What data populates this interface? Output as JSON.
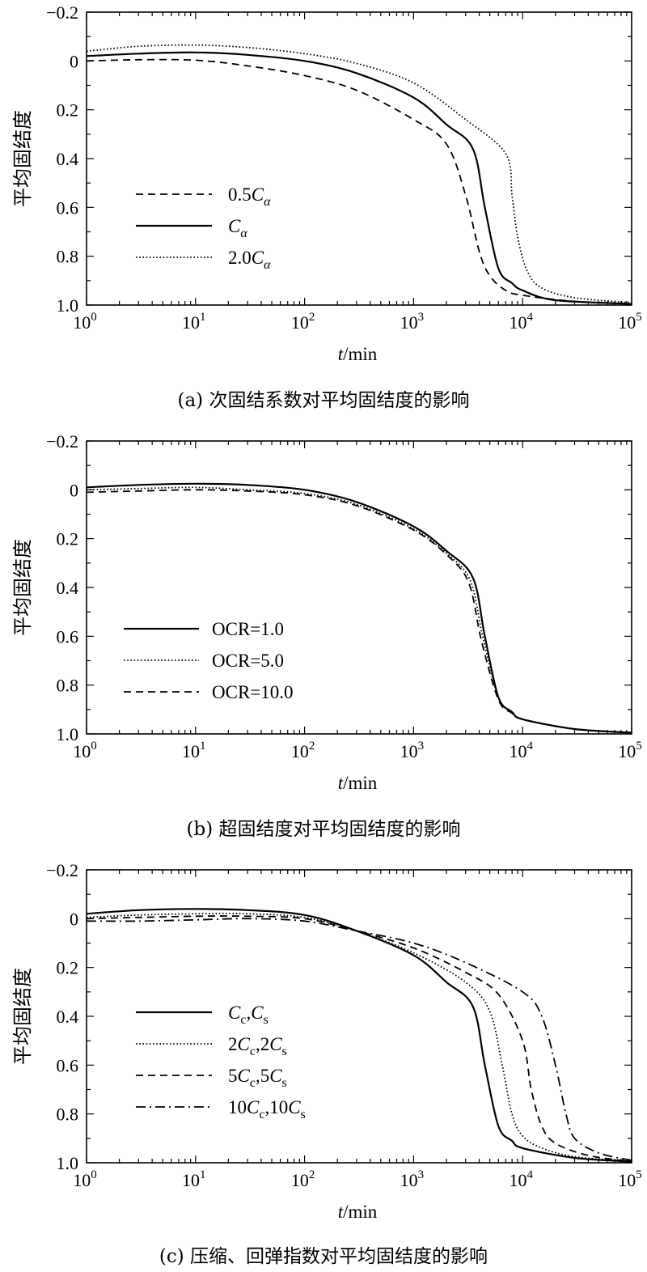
{
  "chart_data": [
    {
      "type": "line",
      "caption": "(a) 次固结系数对平均固结度的影响",
      "ylabel": "平均固结度",
      "xlabel": "t/min",
      "xscale": "log",
      "xlim": [
        1,
        100000
      ],
      "ylim": [
        -0.2,
        1.0
      ],
      "y_inverted": true,
      "legend_placement": "left-middle",
      "x_ticks": [
        {
          "base": "10",
          "exp": "0"
        },
        {
          "base": "10",
          "exp": "1"
        },
        {
          "base": "10",
          "exp": "2"
        },
        {
          "base": "10",
          "exp": "3"
        },
        {
          "base": "10",
          "exp": "4"
        },
        {
          "base": "10",
          "exp": "5"
        }
      ],
      "y_ticks": [
        "−0.2",
        "0",
        "0.2",
        "0.4",
        "0.6",
        "0.8",
        "1.0"
      ],
      "series": [
        {
          "legend_parts": [
            {
              "t": "0.5"
            },
            {
              "t": "C",
              "i": true
            },
            {
              "t": "α",
              "sub": true,
              "i": true
            }
          ],
          "style": "dashed",
          "x": [
            1,
            3,
            10,
            30,
            100,
            300,
            1000,
            2000,
            3000,
            4000,
            5000,
            7000,
            10000,
            30000,
            100000
          ],
          "y": [
            0.0,
            -0.005,
            -0.003,
            0.02,
            0.06,
            0.12,
            0.24,
            0.34,
            0.55,
            0.78,
            0.88,
            0.94,
            0.96,
            0.985,
            0.995
          ]
        },
        {
          "legend_parts": [
            {
              "t": "C",
              "i": true
            },
            {
              "t": "α",
              "sub": true,
              "i": true
            }
          ],
          "style": "solid",
          "x": [
            1,
            3,
            10,
            30,
            100,
            300,
            1000,
            2000,
            3500,
            4500,
            6000,
            8000,
            10000,
            20000,
            100000
          ],
          "y": [
            -0.02,
            -0.03,
            -0.035,
            -0.025,
            0.0,
            0.05,
            0.15,
            0.26,
            0.36,
            0.6,
            0.85,
            0.91,
            0.94,
            0.98,
            0.995
          ]
        },
        {
          "legend_parts": [
            {
              "t": "2.0"
            },
            {
              "t": "C",
              "i": true
            },
            {
              "t": "α",
              "sub": true,
              "i": true
            }
          ],
          "style": "dotted",
          "x": [
            1,
            3,
            10,
            30,
            100,
            300,
            1000,
            3000,
            7000,
            8000,
            9000,
            11000,
            15000,
            30000,
            100000
          ],
          "y": [
            -0.04,
            -0.06,
            -0.065,
            -0.055,
            -0.03,
            0.01,
            0.09,
            0.24,
            0.38,
            0.55,
            0.72,
            0.86,
            0.93,
            0.97,
            0.99
          ]
        }
      ]
    },
    {
      "type": "line",
      "caption": "(b) 超固结度对平均固结度的影响",
      "ylabel": "平均固结度",
      "xlabel": "t/min",
      "xscale": "log",
      "xlim": [
        1,
        100000
      ],
      "ylim": [
        -0.2,
        1.0
      ],
      "y_inverted": true,
      "legend_placement": "left-middle",
      "x_ticks": [
        {
          "base": "10",
          "exp": "0"
        },
        {
          "base": "10",
          "exp": "1"
        },
        {
          "base": "10",
          "exp": "2"
        },
        {
          "base": "10",
          "exp": "3"
        },
        {
          "base": "10",
          "exp": "4"
        },
        {
          "base": "10",
          "exp": "5"
        }
      ],
      "y_ticks": [
        "−0.2",
        "0",
        "0.2",
        "0.4",
        "0.6",
        "0.8",
        "1.0"
      ],
      "series": [
        {
          "legend_parts": [
            {
              "t": "OCR=1.0"
            }
          ],
          "style": "solid",
          "x": [
            1,
            3,
            10,
            30,
            100,
            300,
            1000,
            2000,
            3500,
            4500,
            6000,
            8000,
            10000,
            30000,
            100000
          ],
          "y": [
            -0.01,
            -0.02,
            -0.025,
            -0.02,
            0.0,
            0.05,
            0.15,
            0.25,
            0.36,
            0.6,
            0.85,
            0.91,
            0.94,
            0.98,
            0.995
          ]
        },
        {
          "legend_parts": [
            {
              "t": "OCR=5.0"
            }
          ],
          "style": "dotted",
          "x": [
            1,
            3,
            10,
            30,
            100,
            300,
            1000,
            2000,
            3300,
            4300,
            6000,
            8000,
            10000,
            30000,
            100000
          ],
          "y": [
            0.0,
            -0.005,
            -0.01,
            0.0,
            0.015,
            0.06,
            0.16,
            0.26,
            0.37,
            0.6,
            0.85,
            0.91,
            0.94,
            0.98,
            0.995
          ]
        },
        {
          "legend_parts": [
            {
              "t": "OCR=10.0"
            }
          ],
          "style": "dashed",
          "x": [
            1,
            3,
            10,
            30,
            100,
            300,
            1000,
            2000,
            3200,
            4200,
            6000,
            8000,
            10000,
            30000,
            100000
          ],
          "y": [
            0.01,
            0.005,
            0.0,
            0.005,
            0.02,
            0.065,
            0.165,
            0.265,
            0.38,
            0.62,
            0.86,
            0.915,
            0.94,
            0.98,
            0.995
          ]
        }
      ]
    },
    {
      "type": "line",
      "caption": "(c) 压缩、回弹指数对平均固结度的影响",
      "ylabel": "平均固结度",
      "xlabel": "t/min",
      "xscale": "log",
      "xlim": [
        1,
        100000
      ],
      "ylim": [
        -0.2,
        1.0
      ],
      "y_inverted": true,
      "legend_placement": "left-middle",
      "x_ticks": [
        {
          "base": "10",
          "exp": "0"
        },
        {
          "base": "10",
          "exp": "1"
        },
        {
          "base": "10",
          "exp": "2"
        },
        {
          "base": "10",
          "exp": "3"
        },
        {
          "base": "10",
          "exp": "4"
        },
        {
          "base": "10",
          "exp": "5"
        }
      ],
      "y_ticks": [
        "−0.2",
        "0",
        "0.2",
        "0.4",
        "0.6",
        "0.8",
        "1.0"
      ],
      "series": [
        {
          "legend_parts": [
            {
              "t": "C",
              "i": true
            },
            {
              "t": "c",
              "sub": true
            },
            {
              "t": ","
            },
            {
              "t": "C",
              "i": true
            },
            {
              "t": "s",
              "sub": true
            }
          ],
          "style": "solid",
          "x": [
            1,
            3,
            10,
            30,
            100,
            300,
            1000,
            2000,
            3500,
            4500,
            6000,
            8000,
            10000,
            30000,
            100000
          ],
          "y": [
            -0.02,
            -0.035,
            -0.04,
            -0.035,
            -0.015,
            0.05,
            0.15,
            0.26,
            0.36,
            0.6,
            0.85,
            0.91,
            0.94,
            0.98,
            0.995
          ]
        },
        {
          "legend_parts": [
            {
              "t": "2"
            },
            {
              "t": "C",
              "i": true
            },
            {
              "t": "c",
              "sub": true
            },
            {
              "t": ",2"
            },
            {
              "t": "C",
              "i": true
            },
            {
              "t": "s",
              "sub": true
            }
          ],
          "style": "dotted",
          "x": [
            1,
            3,
            10,
            30,
            100,
            300,
            1000,
            3000,
            5000,
            6500,
            8000,
            10000,
            15000,
            30000,
            100000
          ],
          "y": [
            -0.005,
            -0.015,
            -0.02,
            -0.02,
            -0.005,
            0.05,
            0.14,
            0.26,
            0.38,
            0.6,
            0.8,
            0.89,
            0.94,
            0.975,
            0.995
          ]
        },
        {
          "legend_parts": [
            {
              "t": "5"
            },
            {
              "t": "C",
              "i": true
            },
            {
              "t": "c",
              "sub": true
            },
            {
              "t": ",5"
            },
            {
              "t": "C",
              "i": true
            },
            {
              "t": "s",
              "sub": true
            }
          ],
          "style": "dashed",
          "x": [
            1,
            3,
            10,
            30,
            100,
            300,
            1000,
            3000,
            6000,
            10000,
            12000,
            15000,
            20000,
            40000,
            100000
          ],
          "y": [
            0.0,
            -0.005,
            -0.01,
            -0.01,
            0.0,
            0.05,
            0.12,
            0.22,
            0.31,
            0.5,
            0.7,
            0.85,
            0.92,
            0.97,
            0.995
          ]
        },
        {
          "legend_parts": [
            {
              "t": "10"
            },
            {
              "t": "C",
              "i": true
            },
            {
              "t": "c",
              "sub": true
            },
            {
              "t": ",10"
            },
            {
              "t": "C",
              "i": true
            },
            {
              "t": "s",
              "sub": true
            }
          ],
          "style": "dashdot",
          "x": [
            1,
            3,
            10,
            30,
            100,
            300,
            1000,
            3000,
            10000,
            15000,
            20000,
            25000,
            30000,
            50000,
            100000
          ],
          "y": [
            0.01,
            0.01,
            0.005,
            0.0,
            0.01,
            0.05,
            0.1,
            0.18,
            0.3,
            0.4,
            0.6,
            0.8,
            0.9,
            0.96,
            0.99
          ]
        }
      ]
    }
  ]
}
